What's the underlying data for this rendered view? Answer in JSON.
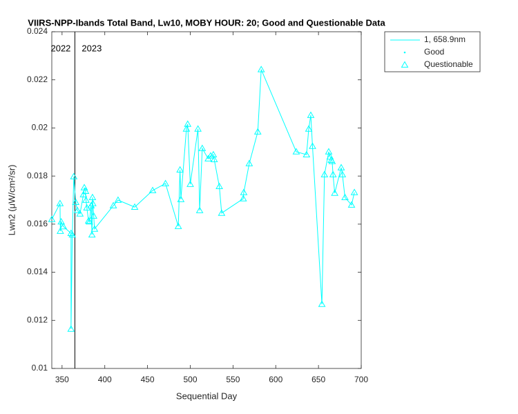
{
  "chart_data": {
    "type": "line",
    "title": "VIIRS-NPP-Ibands Total Band, Lw10, MOBY HOUR: 20;  Good and Questionable Data",
    "x_label": "Sequential Day",
    "y_label": "Lwn2 (μW/cm²/sr)",
    "xlim": [
      338,
      700
    ],
    "ylim": [
      0.01,
      0.024
    ],
    "xticks": [
      350,
      400,
      450,
      500,
      550,
      600,
      650,
      700
    ],
    "yticks": [
      0.01,
      0.012,
      0.014,
      0.016,
      0.018,
      0.02,
      0.022,
      0.024
    ],
    "grid": false,
    "divider_x": 365,
    "divider_labels": [
      "2022",
      "2023"
    ],
    "legend_position": "outside-top-right",
    "marker_legend": [
      "Good",
      "Questionable"
    ],
    "series": [
      {
        "name": "1, 658.9nm",
        "color": "#00ffff",
        "x": [
          338,
          347.6,
          348,
          349,
          351.6,
          360.5,
          360.5,
          362,
          363.7,
          366,
          368,
          371,
          375,
          376,
          377.5,
          378,
          379,
          381,
          382,
          384,
          385,
          385.6,
          386,
          387,
          388,
          410,
          415.5,
          435,
          456,
          471,
          486,
          488,
          489,
          495.5,
          497,
          500,
          509,
          511,
          514,
          521,
          523.8,
          527,
          528,
          534,
          536.7,
          562,
          562.6,
          569,
          579,
          583,
          624,
          636,
          638.6,
          641,
          643,
          654,
          657,
          662,
          663.6,
          665,
          666,
          667,
          669,
          676.6,
          678,
          681,
          688.7,
          692
        ],
        "values": [
          0.0162,
          0.01686,
          0.01571,
          0.0161,
          0.0159,
          0.01562,
          0.01164,
          0.01556,
          0.01798,
          0.01691,
          0.01657,
          0.01643,
          0.01723,
          0.01752,
          0.01737,
          0.017,
          0.01668,
          0.01614,
          0.0161,
          0.01677,
          0.01556,
          0.01711,
          0.01686,
          0.01634,
          0.0158,
          0.01677,
          0.017,
          0.01671,
          0.0174,
          0.01769,
          0.01591,
          0.01826,
          0.01703,
          0.01996,
          0.02016,
          0.01766,
          0.01996,
          0.01657,
          0.01915,
          0.01872,
          0.01884,
          0.01889,
          0.01869,
          0.01757,
          0.01646,
          0.01706,
          0.01732,
          0.01852,
          0.01984,
          0.02243,
          0.01901,
          0.01889,
          0.01996,
          0.02053,
          0.01924,
          0.01267,
          0.01806,
          0.01901,
          0.0188,
          0.01866,
          0.01861,
          0.01806,
          0.01729,
          0.01835,
          0.01806,
          0.01711,
          0.0168,
          0.01732
        ]
      }
    ]
  }
}
